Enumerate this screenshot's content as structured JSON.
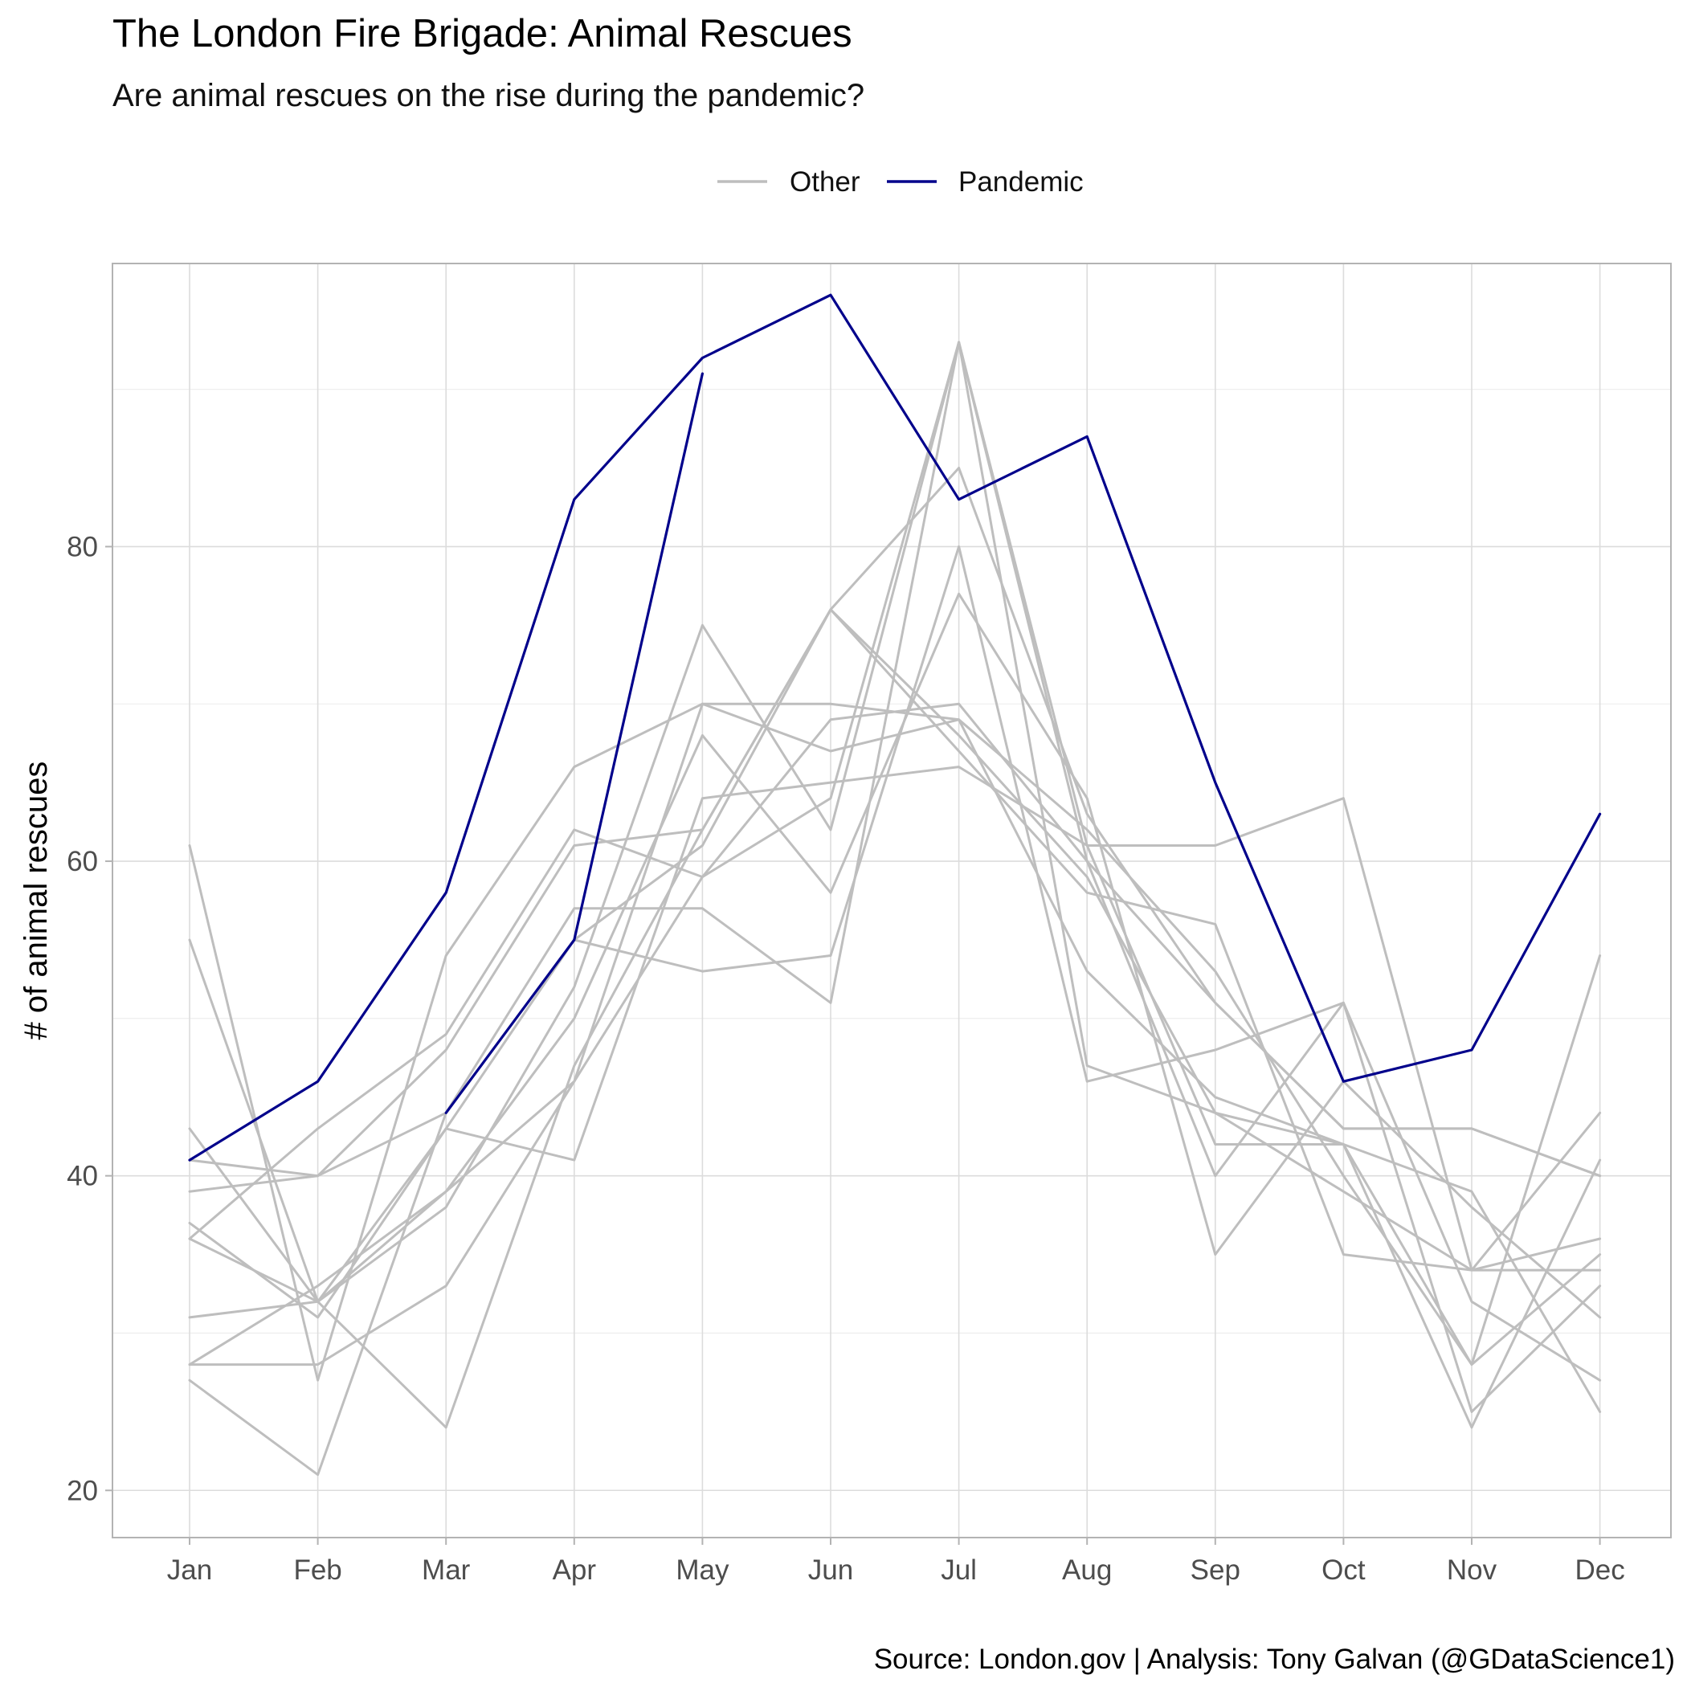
{
  "chart_data": {
    "type": "line",
    "title": "The London Fire Brigade: Animal Rescues",
    "subtitle": "Are animal rescues on the rise during the pandemic?",
    "caption": "Source: London.gov  |  Analysis: Tony Galvan (@GDataScience1)",
    "xlabel": "",
    "ylabel": "# of animal rescues",
    "categories": [
      "Jan",
      "Feb",
      "Mar",
      "Apr",
      "May",
      "Jun",
      "Jul",
      "Aug",
      "Sep",
      "Oct",
      "Nov",
      "Dec"
    ],
    "ylim": [
      17,
      98
    ],
    "yticks": [
      20,
      40,
      60,
      80
    ],
    "grid": true,
    "legend": {
      "position": "top",
      "entries": [
        {
          "label": "Other",
          "color": "#bebebe"
        },
        {
          "label": "Pandemic",
          "color": "#00008b"
        }
      ]
    },
    "series": [
      {
        "group": "Other",
        "values": [
          61,
          27,
          54,
          66,
          70,
          70,
          69,
          53,
          45,
          42,
          28,
          54
        ]
      },
      {
        "group": "Other",
        "values": [
          55,
          32,
          24,
          47,
          62,
          76,
          85,
          63,
          51,
          43,
          43,
          40
        ]
      },
      {
        "group": "Other",
        "values": [
          43,
          32,
          43,
          41,
          64,
          65,
          66,
          61,
          61,
          64,
          34,
          34
        ]
      },
      {
        "group": "Other",
        "values": [
          41,
          40,
          44,
          57,
          57,
          51,
          93,
          47,
          44,
          39,
          34,
          36
        ]
      },
      {
        "group": "Other",
        "values": [
          39,
          40,
          48,
          61,
          62,
          76,
          67,
          58,
          56,
          35,
          34,
          44
        ]
      },
      {
        "group": "Other",
        "values": [
          37,
          31,
          43,
          55,
          53,
          54,
          80,
          46,
          48,
          51,
          32,
          27
        ]
      },
      {
        "group": "Other",
        "values": [
          36,
          43,
          49,
          62,
          59,
          69,
          70,
          60,
          51,
          43,
          43,
          40
        ]
      },
      {
        "group": "Other",
        "values": [
          36,
          32,
          38,
          52,
          75,
          62,
          93,
          60,
          40,
          51,
          25,
          33
        ]
      },
      {
        "group": "Other",
        "values": [
          31,
          32,
          39,
          50,
          68,
          58,
          77,
          64,
          35,
          46,
          38,
          31
        ]
      },
      {
        "group": "Other",
        "values": [
          28,
          33,
          39,
          46,
          70,
          67,
          69,
          62,
          53,
          40,
          28,
          35
        ]
      },
      {
        "group": "Other",
        "values": [
          28,
          28,
          33,
          46,
          59,
          64,
          93,
          61,
          42,
          42,
          24,
          41
        ]
      },
      {
        "group": "Other",
        "values": [
          27,
          21,
          44,
          55,
          61,
          76,
          68,
          59,
          44,
          42,
          39,
          25
        ]
      },
      {
        "group": "Pandemic",
        "values": [
          41,
          46,
          58,
          83,
          92,
          96,
          83,
          87,
          65,
          46,
          48,
          63
        ]
      },
      {
        "group": "Pandemic",
        "values": [
          null,
          null,
          44,
          55,
          91,
          null,
          null,
          null,
          null,
          null,
          null,
          null
        ]
      }
    ]
  }
}
